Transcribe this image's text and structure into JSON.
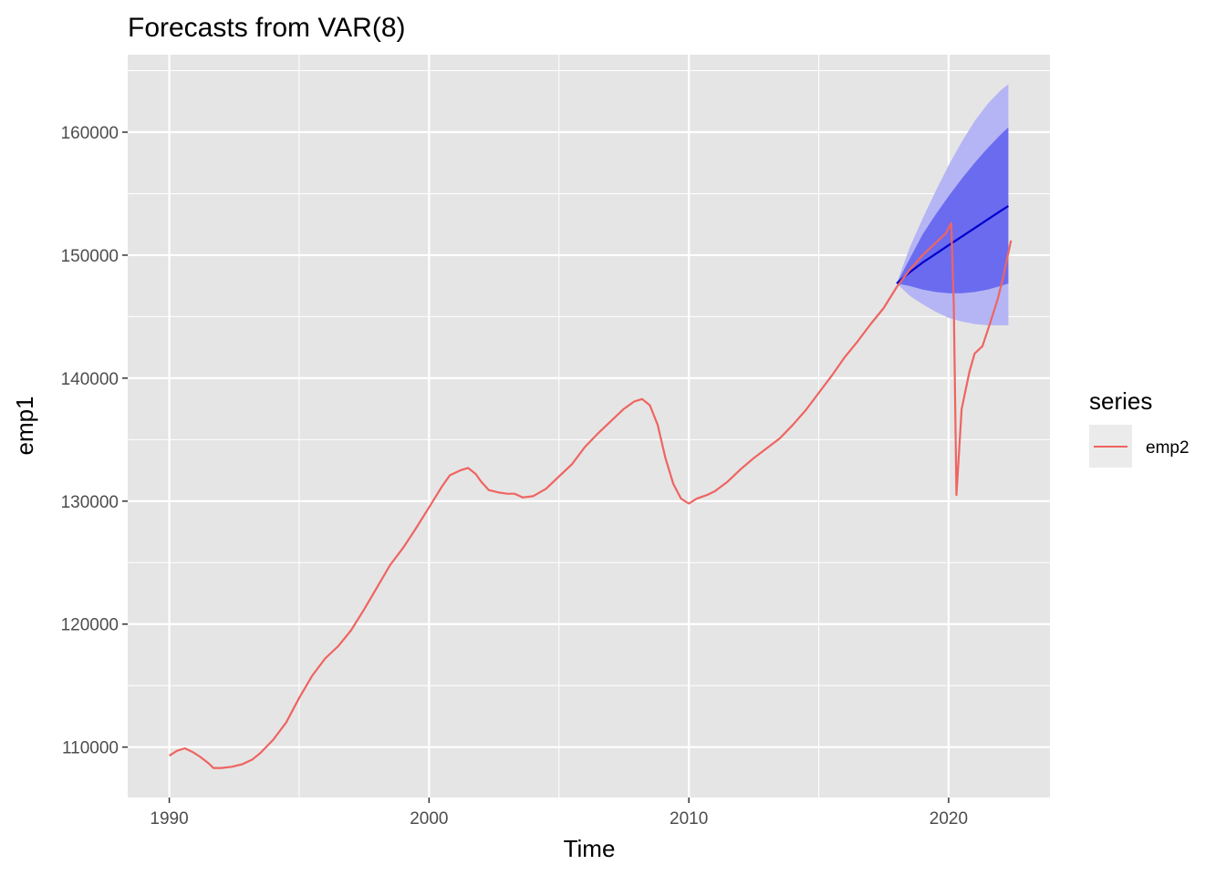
{
  "chart_data": {
    "type": "line",
    "title": "Forecasts from VAR(8)",
    "xlabel": "Time",
    "ylabel": "emp1",
    "xlim": [
      1988.4,
      2023.9
    ],
    "ylim": [
      105900,
      166300
    ],
    "x_ticks": [
      1990,
      2000,
      2010,
      2020
    ],
    "x_tick_labels": [
      "1990",
      "2000",
      "2010",
      "2020"
    ],
    "y_ticks": [
      110000,
      120000,
      130000,
      140000,
      150000,
      160000
    ],
    "y_tick_labels": [
      "110000",
      "120000",
      "130000",
      "140000",
      "150000",
      "160000"
    ],
    "grid": true,
    "legend": {
      "title": "series",
      "position": "right",
      "entries": [
        "emp2"
      ]
    },
    "colors": {
      "panel_bg": "#e5e5e5",
      "grid": "#ffffff",
      "series_line": "#ef6461",
      "forecast_line": "#0000cc",
      "band80": "#6b6bf0",
      "band95": "#b5b5f5",
      "legend_key_bg": "#ebebeb"
    },
    "series": [
      {
        "name": "emp2",
        "points": [
          [
            1990.0,
            109300
          ],
          [
            1990.3,
            109700
          ],
          [
            1990.6,
            109900
          ],
          [
            1990.9,
            109600
          ],
          [
            1991.2,
            109200
          ],
          [
            1991.5,
            108700
          ],
          [
            1991.7,
            108300
          ],
          [
            1992.0,
            108300
          ],
          [
            1992.4,
            108400
          ],
          [
            1992.8,
            108600
          ],
          [
            1993.2,
            109000
          ],
          [
            1993.5,
            109500
          ],
          [
            1994.0,
            110600
          ],
          [
            1994.5,
            112000
          ],
          [
            1995.0,
            114000
          ],
          [
            1995.5,
            115800
          ],
          [
            1996.0,
            117200
          ],
          [
            1996.5,
            118200
          ],
          [
            1997.0,
            119500
          ],
          [
            1997.5,
            121200
          ],
          [
            1998.0,
            123000
          ],
          [
            1998.5,
            124800
          ],
          [
            1999.0,
            126200
          ],
          [
            1999.5,
            127800
          ],
          [
            2000.0,
            129500
          ],
          [
            2000.5,
            131200
          ],
          [
            2000.8,
            132100
          ],
          [
            2001.2,
            132500
          ],
          [
            2001.5,
            132700
          ],
          [
            2001.8,
            132200
          ],
          [
            2002.0,
            131600
          ],
          [
            2002.3,
            130900
          ],
          [
            2002.7,
            130700
          ],
          [
            2003.0,
            130600
          ],
          [
            2003.3,
            130600
          ],
          [
            2003.6,
            130300
          ],
          [
            2004.0,
            130400
          ],
          [
            2004.5,
            131000
          ],
          [
            2005.0,
            132000
          ],
          [
            2005.5,
            133000
          ],
          [
            2006.0,
            134400
          ],
          [
            2006.5,
            135500
          ],
          [
            2007.0,
            136500
          ],
          [
            2007.5,
            137500
          ],
          [
            2007.9,
            138100
          ],
          [
            2008.2,
            138300
          ],
          [
            2008.5,
            137800
          ],
          [
            2008.8,
            136200
          ],
          [
            2009.1,
            133500
          ],
          [
            2009.4,
            131400
          ],
          [
            2009.7,
            130200
          ],
          [
            2010.0,
            129800
          ],
          [
            2010.3,
            130200
          ],
          [
            2010.7,
            130500
          ],
          [
            2011.0,
            130800
          ],
          [
            2011.5,
            131600
          ],
          [
            2012.0,
            132600
          ],
          [
            2012.5,
            133500
          ],
          [
            2013.0,
            134300
          ],
          [
            2013.5,
            135100
          ],
          [
            2014.0,
            136200
          ],
          [
            2014.5,
            137400
          ],
          [
            2015.0,
            138800
          ],
          [
            2015.5,
            140200
          ],
          [
            2016.0,
            141700
          ],
          [
            2016.5,
            143000
          ],
          [
            2017.0,
            144400
          ],
          [
            2017.5,
            145700
          ],
          [
            2018.0,
            147400
          ],
          [
            2018.5,
            148800
          ],
          [
            2019.0,
            150000
          ],
          [
            2019.5,
            151000
          ],
          [
            2019.9,
            151800
          ],
          [
            2020.1,
            152600
          ],
          [
            2020.2,
            146000
          ],
          [
            2020.3,
            130500
          ],
          [
            2020.5,
            137500
          ],
          [
            2020.8,
            140500
          ],
          [
            2021.0,
            142000
          ],
          [
            2021.3,
            142600
          ],
          [
            2021.6,
            144500
          ],
          [
            2021.9,
            146500
          ],
          [
            2022.1,
            148200
          ],
          [
            2022.4,
            151200
          ]
        ]
      }
    ],
    "forecast": {
      "x": [
        2018.0,
        2018.5,
        2019.0,
        2019.5,
        2020.0,
        2020.5,
        2021.0,
        2021.5,
        2022.0,
        2022.3
      ],
      "mean": [
        147700,
        148600,
        149400,
        150100,
        150800,
        151500,
        152200,
        152900,
        153600,
        154000
      ],
      "lo80": [
        147700,
        147500,
        147200,
        147000,
        146900,
        146900,
        147000,
        147200,
        147500,
        147700
      ],
      "hi80": [
        147700,
        149700,
        151700,
        153300,
        154800,
        156200,
        157500,
        158700,
        159800,
        160400
      ],
      "lo95": [
        147700,
        146700,
        146000,
        145400,
        144900,
        144600,
        144400,
        144300,
        144300,
        144300
      ],
      "hi95": [
        147700,
        150600,
        153000,
        155200,
        157300,
        159200,
        160900,
        162300,
        163400,
        163900
      ]
    }
  }
}
